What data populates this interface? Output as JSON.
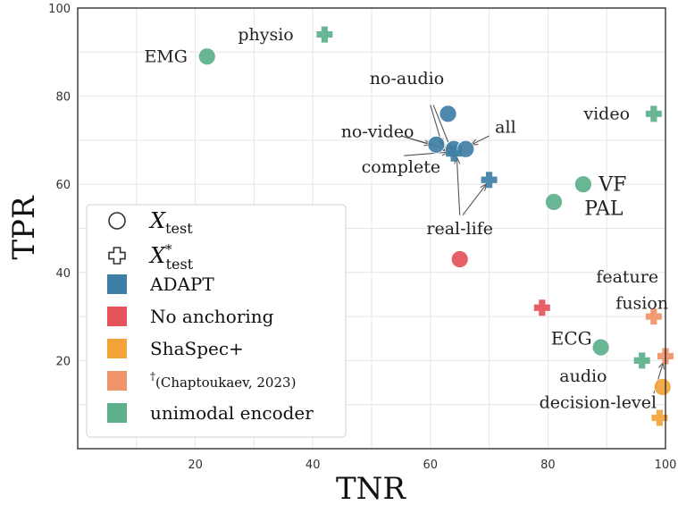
{
  "chart_data": {
    "type": "scatter",
    "title": "",
    "xlabel": "TNR",
    "ylabel": "TPR",
    "xlim": [
      0,
      100
    ],
    "ylim": [
      0,
      100
    ],
    "xticks": [
      20,
      40,
      60,
      80,
      100
    ],
    "yticks": [
      20,
      40,
      60,
      80,
      100
    ],
    "grid": true,
    "legend_position": "lower-left",
    "colors": {
      "adapt": "#3f7fa6",
      "no_anchoring": "#e5525a",
      "shaspec": "#f2a43a",
      "chaptoukaev": "#f0926a",
      "unimodal": "#5cb08c",
      "grid": "#e6e6e6",
      "arrow": "#555555"
    },
    "legend": {
      "marker_entries": [
        {
          "marker": "circle",
          "base": "X",
          "sub": "test",
          "sup": ""
        },
        {
          "marker": "plus",
          "base": "X",
          "sub": "test",
          "sup": "*"
        }
      ],
      "color_entries": [
        {
          "color_key": "adapt",
          "label": "ADAPT",
          "dagger": ""
        },
        {
          "color_key": "no_anchoring",
          "label": "No anchoring",
          "dagger": ""
        },
        {
          "color_key": "shaspec",
          "label": "ShaSpec+",
          "dagger": ""
        },
        {
          "color_key": "chaptoukaev",
          "label": "(Chaptoukaev, 2023)",
          "dagger": "†"
        },
        {
          "color_key": "unimodal",
          "label": "unimodal encoder",
          "dagger": ""
        }
      ]
    },
    "points": [
      {
        "name": "physio",
        "x": 42,
        "y": 94,
        "marker": "plus",
        "group": "unimodal"
      },
      {
        "name": "EMG",
        "x": 22,
        "y": 89,
        "marker": "circle",
        "group": "unimodal"
      },
      {
        "name": "no-audio",
        "x": 63,
        "y": 76,
        "marker": "circle",
        "group": "adapt"
      },
      {
        "name": "no-video",
        "x": 61,
        "y": 69,
        "marker": "circle",
        "group": "adapt"
      },
      {
        "name": "complete",
        "x": 64,
        "y": 68,
        "marker": "circle",
        "group": "adapt"
      },
      {
        "name": "all",
        "x": 66,
        "y": 68,
        "marker": "circle",
        "group": "adapt"
      },
      {
        "name": "complete-star",
        "x": 64,
        "y": 67,
        "marker": "plus",
        "group": "adapt"
      },
      {
        "name": "real-life",
        "x": 70,
        "y": 61,
        "marker": "plus",
        "group": "adapt"
      },
      {
        "name": "video",
        "x": 98,
        "y": 76,
        "marker": "plus",
        "group": "unimodal"
      },
      {
        "name": "VF",
        "x": 86,
        "y": 60,
        "marker": "circle",
        "group": "unimodal"
      },
      {
        "name": "PAL",
        "x": 81,
        "y": 56,
        "marker": "circle",
        "group": "unimodal"
      },
      {
        "name": "no-anchoring-circle",
        "x": 65,
        "y": 43,
        "marker": "circle",
        "group": "no_anchoring"
      },
      {
        "name": "no-anchoring-plus",
        "x": 79,
        "y": 32,
        "marker": "plus",
        "group": "no_anchoring"
      },
      {
        "name": "feature-fusion",
        "x": 98,
        "y": 30,
        "marker": "plus",
        "group": "chaptoukaev"
      },
      {
        "name": "ECG",
        "x": 89,
        "y": 23,
        "marker": "circle",
        "group": "unimodal"
      },
      {
        "name": "audio",
        "x": 96,
        "y": 20,
        "marker": "plus",
        "group": "unimodal"
      },
      {
        "name": "decision-level",
        "x": 100,
        "y": 21,
        "marker": "plus",
        "group": "chaptoukaev"
      },
      {
        "name": "shaspec-circle",
        "x": 99.5,
        "y": 14,
        "marker": "circle",
        "group": "shaspec"
      },
      {
        "name": "shaspec-plus",
        "x": 99,
        "y": 7,
        "marker": "plus",
        "group": "shaspec"
      }
    ],
    "annotations": [
      {
        "text": "physio",
        "x": 32,
        "y": 94,
        "anchor": "middle",
        "size": 19
      },
      {
        "text": "EMG",
        "x": 15,
        "y": 89,
        "anchor": "middle",
        "size": 19
      },
      {
        "text": "no-audio",
        "x": 56,
        "y": 84,
        "anchor": "middle",
        "size": 19
      },
      {
        "text": "no-video",
        "x": 51,
        "y": 72,
        "anchor": "middle",
        "size": 19
      },
      {
        "text": "complete",
        "x": 55,
        "y": 64,
        "anchor": "middle",
        "size": 19
      },
      {
        "text": "all",
        "x": 71,
        "y": 73,
        "anchor": "start",
        "size": 19
      },
      {
        "text": "real-life",
        "x": 65,
        "y": 50,
        "anchor": "middle",
        "size": 19
      },
      {
        "text": "video",
        "x": 90,
        "y": 76,
        "anchor": "middle",
        "size": 19
      },
      {
        "text": "VF",
        "x": 91,
        "y": 60,
        "anchor": "middle",
        "size": 22
      },
      {
        "text": "PAL",
        "x": 89.5,
        "y": 54.5,
        "anchor": "middle",
        "size": 22
      },
      {
        "text": "feature",
        "x": 93.5,
        "y": 39,
        "anchor": "middle",
        "size": 19
      },
      {
        "text": "fusion",
        "x": 96,
        "y": 33,
        "anchor": "middle",
        "size": 19
      },
      {
        "text": "ECG",
        "x": 84,
        "y": 25,
        "anchor": "middle",
        "size": 20
      },
      {
        "text": "audio",
        "x": 86,
        "y": 16.5,
        "anchor": "middle",
        "size": 19
      },
      {
        "text": "decision-level",
        "x": 88.5,
        "y": 10.5,
        "anchor": "middle",
        "size": 19
      }
    ],
    "arrows": [
      {
        "from": [
          60,
          78
        ],
        "to": [
          62,
          69
        ]
      },
      {
        "from": [
          60.5,
          78
        ],
        "to": [
          63.5,
          68
        ]
      },
      {
        "from": [
          55,
          71
        ],
        "to": [
          60,
          69
        ]
      },
      {
        "from": [
          55,
          71
        ],
        "to": [
          63,
          68
        ]
      },
      {
        "from": [
          55.5,
          66.5
        ],
        "to": [
          63,
          67.3
        ]
      },
      {
        "from": [
          70,
          71
        ],
        "to": [
          67,
          69
        ]
      },
      {
        "from": [
          65,
          53
        ],
        "to": [
          64.5,
          66
        ]
      },
      {
        "from": [
          65.5,
          53
        ],
        "to": [
          69.5,
          60
        ]
      },
      {
        "from": [
          98,
          12.5
        ],
        "to": [
          99.6,
          19.5
        ]
      }
    ]
  }
}
